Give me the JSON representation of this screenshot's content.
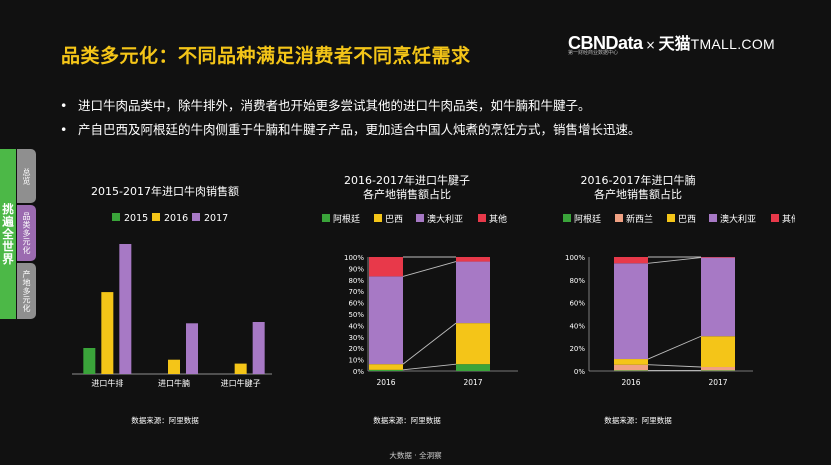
{
  "title": "品类多元化：不同品种满足消费者不同烹饪需求",
  "logo": {
    "brand": "CBNData",
    "separator": "×",
    "partner_cn": "天猫",
    "partner_en": "TMALL.COM",
    "tagline": "第一财经商业数据中心"
  },
  "bullets": [
    "进口牛肉品类中，除牛排外，消费者也开始更多尝试其他的进口牛肉品类，如牛腩和牛腱子。",
    "产自巴西及阿根廷的牛肉侧重于牛腩和牛腱子产品，更加适合中国人炖煮的烹饪方式，销售增长迅速。"
  ],
  "bullet_marker": "•",
  "nav": {
    "main_label": "挑遍全世界",
    "tabs": [
      "总览",
      "品类多元化",
      "产地多元化"
    ]
  },
  "footer": "大数据 · 全洞察",
  "colors": {
    "title": "#f4c518",
    "green": "#3aa43a",
    "yellow": "#f4c518",
    "purple": "#a779c5",
    "red": "#e8394a",
    "salmon": "#f0a183"
  },
  "chart_data": [
    {
      "type": "bar",
      "title": "2015-2017年进口牛肉销售额",
      "categories": [
        "进口牛排",
        "进口牛腩",
        "进口牛腱子"
      ],
      "series": [
        {
          "name": "2015",
          "color": "#3aa43a",
          "values": [
            20,
            0,
            0
          ]
        },
        {
          "name": "2016",
          "color": "#f4c518",
          "values": [
            63,
            11,
            8
          ]
        },
        {
          "name": "2017",
          "color": "#a779c5",
          "values": [
            100,
            39,
            40
          ]
        }
      ],
      "ylim": [
        0,
        100
      ],
      "source": "数据来源：阿里数据"
    },
    {
      "type": "bar",
      "stacked": "percent",
      "title": "2016-2017年进口牛腱子",
      "subtitle": "各产地销售额占比",
      "categories": [
        "2016",
        "2017"
      ],
      "series": [
        {
          "name": "阿根廷",
          "color": "#3aa43a",
          "values": [
            1,
            6
          ]
        },
        {
          "name": "巴西",
          "color": "#f4c518",
          "values": [
            5,
            36
          ]
        },
        {
          "name": "澳大利亚",
          "color": "#a779c5",
          "values": [
            77,
            54
          ]
        },
        {
          "name": "其他",
          "color": "#e8394a",
          "values": [
            17,
            4
          ]
        }
      ],
      "yticks": [
        "0%",
        "10%",
        "20%",
        "30%",
        "40%",
        "50%",
        "60%",
        "70%",
        "80%",
        "90%",
        "100%"
      ],
      "ylim": [
        0,
        100
      ],
      "source": "数据来源：阿里数据"
    },
    {
      "type": "bar",
      "stacked": "percent",
      "title": "2016-2017年进口牛腩",
      "subtitle": "各产地销售额占比",
      "categories": [
        "2016",
        "2017"
      ],
      "series": [
        {
          "name": "阿根廷",
          "color": "#3aa43a",
          "values": [
            0.5,
            0.5
          ]
        },
        {
          "name": "新西兰",
          "color": "#f0a183",
          "values": [
            5,
            3
          ]
        },
        {
          "name": "巴西",
          "color": "#f4c518",
          "values": [
            5,
            27
          ]
        },
        {
          "name": "澳大利亚",
          "color": "#a779c5",
          "values": [
            84,
            69
          ]
        },
        {
          "name": "其他",
          "color": "#e8394a",
          "values": [
            5.5,
            0.5
          ]
        }
      ],
      "yticks": [
        "0%",
        "20%",
        "40%",
        "60%",
        "80%",
        "100%"
      ],
      "ylim": [
        0,
        100
      ],
      "source": "数据来源：阿里数据"
    }
  ]
}
